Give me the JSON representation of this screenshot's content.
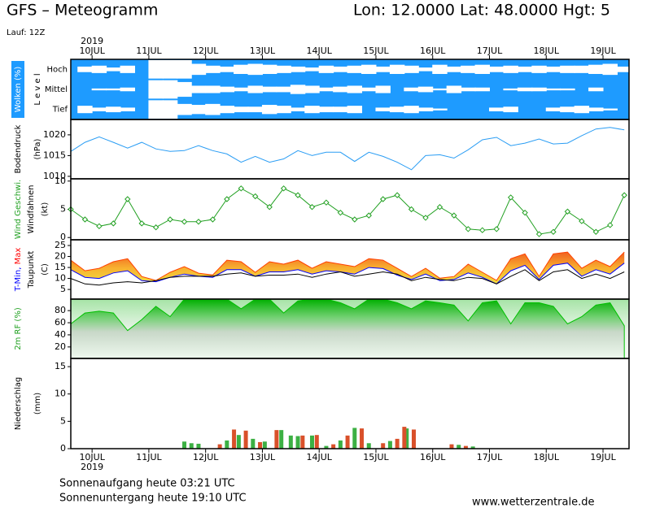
{
  "header": {
    "title": "GFS – Meteogramm",
    "location": "Lon: 12.0000 Lat: 48.0000 Hgt: 5",
    "run": "Lauf: 12Z"
  },
  "time_axis": {
    "year": "2019",
    "xlim": [
      -9,
      227
    ],
    "xticks": [
      {
        "value": 0,
        "label": "10JUL"
      },
      {
        "value": 24,
        "label": "11JUL"
      },
      {
        "value": 48,
        "label": "12JUL"
      },
      {
        "value": 72,
        "label": "13JUL"
      },
      {
        "value": 96,
        "label": "14JUL"
      },
      {
        "value": 120,
        "label": "15JUL"
      },
      {
        "value": 144,
        "label": "16JUL"
      },
      {
        "value": 168,
        "label": "17JUL"
      },
      {
        "value": 192,
        "label": "18JUL"
      },
      {
        "value": 216,
        "label": "19JUL"
      }
    ]
  },
  "chart_data": [
    {
      "type": "cloud",
      "background": "#1e9bff",
      "ylabel": [
        [
          {
            "text": "Wolken (%)",
            "color": "#ffffff",
            "bg": "#1e9bff"
          }
        ],
        [
          {
            "text": "L e v e l"
          }
        ]
      ],
      "x": [
        -9,
        -3,
        3,
        9,
        15,
        21,
        27,
        33,
        39,
        45,
        51,
        57,
        63,
        69,
        75,
        81,
        87,
        93,
        99,
        105,
        111,
        117,
        123,
        129,
        135,
        141,
        147,
        153,
        159,
        165,
        171,
        177,
        183,
        189,
        195,
        201,
        207,
        213,
        219,
        225
      ],
      "series": [
        {
          "name": "Hoch",
          "color": "#ffffff",
          "values": [
            0,
            30,
            40,
            20,
            40,
            0,
            100,
            100,
            100,
            60,
            40,
            30,
            50,
            60,
            50,
            40,
            30,
            20,
            40,
            30,
            40,
            50,
            30,
            50,
            40,
            20,
            50,
            30,
            40,
            50,
            30,
            40,
            30,
            40,
            30,
            40,
            40,
            50,
            60,
            30
          ]
        },
        {
          "name": "Mittel",
          "color": "#ffffff",
          "values": [
            0,
            0,
            10,
            10,
            20,
            0,
            100,
            100,
            80,
            40,
            40,
            30,
            20,
            40,
            30,
            30,
            50,
            40,
            20,
            30,
            40,
            20,
            40,
            0,
            20,
            30,
            10,
            40,
            20,
            20,
            0,
            10,
            20,
            20,
            10,
            10,
            0,
            20,
            0,
            0
          ]
        },
        {
          "name": "Tief",
          "color": "#ffffff",
          "values": [
            0,
            40,
            20,
            30,
            20,
            0,
            100,
            100,
            60,
            50,
            60,
            40,
            30,
            30,
            50,
            40,
            20,
            40,
            30,
            30,
            40,
            0,
            20,
            30,
            40,
            20,
            10,
            0,
            0,
            0,
            20,
            30,
            0,
            0,
            20,
            30,
            40,
            20,
            10,
            0
          ]
        }
      ]
    },
    {
      "type": "line",
      "ylabel": [
        [
          {
            "text": "Bodendruck"
          }
        ],
        [
          {
            "text": "(hPa)"
          }
        ]
      ],
      "ylim": [
        1009.4,
        1023.7
      ],
      "yticks": [
        1010,
        1015,
        1020
      ],
      "x": [
        -9,
        -3,
        3,
        9,
        15,
        21,
        27,
        33,
        39,
        45,
        51,
        57,
        63,
        69,
        75,
        81,
        87,
        93,
        99,
        105,
        111,
        117,
        123,
        129,
        135,
        141,
        147,
        153,
        159,
        165,
        171,
        177,
        183,
        189,
        195,
        201,
        207,
        213,
        219,
        225
      ],
      "series": [
        {
          "color": "#2a9df4",
          "values": [
            1016.0,
            1018.2,
            1019.5,
            1018.2,
            1016.8,
            1018.2,
            1016.6,
            1016.0,
            1016.2,
            1017.4,
            1016.2,
            1015.4,
            1013.4,
            1014.8,
            1013.4,
            1014.2,
            1016.2,
            1015.0,
            1015.8,
            1015.8,
            1013.6,
            1015.8,
            1014.8,
            1013.4,
            1011.6,
            1015.0,
            1015.2,
            1014.4,
            1016.4,
            1018.8,
            1019.4,
            1017.4,
            1018.0,
            1019.0,
            1017.8,
            1018.0,
            1019.8,
            1021.4,
            1021.8,
            1021.2
          ]
        }
      ]
    },
    {
      "type": "line",
      "marker": "diamond",
      "ylabel": [
        [
          {
            "text": "Wind Geschwi.",
            "color": "#20a020"
          }
        ],
        [
          {
            "text": "Windfahnen"
          }
        ],
        [
          {
            "text": "(kt)"
          }
        ]
      ],
      "ylim": [
        -0.4,
        10.4
      ],
      "yticks": [
        0,
        5,
        10
      ],
      "x": [
        -9,
        -3,
        3,
        9,
        15,
        21,
        27,
        33,
        39,
        45,
        51,
        57,
        63,
        69,
        75,
        81,
        87,
        93,
        99,
        105,
        111,
        117,
        123,
        129,
        135,
        141,
        147,
        153,
        159,
        165,
        171,
        177,
        183,
        189,
        195,
        201,
        207,
        213,
        219,
        225
      ],
      "series": [
        {
          "color": "#22a022",
          "values": [
            5,
            3.2,
            2,
            2.5,
            6.8,
            2.5,
            1.8,
            3.2,
            2.8,
            2.8,
            3.2,
            6.8,
            8.7,
            7.3,
            5.4,
            8.7,
            7.5,
            5.4,
            6.2,
            4.4,
            3.2,
            3.9,
            6.8,
            7.5,
            5,
            3.5,
            5.4,
            3.9,
            1.5,
            1.3,
            1.5,
            7.1,
            4.4,
            0.6,
            1,
            4.6,
            2.9,
            1,
            2.2,
            7.5
          ]
        }
      ]
    },
    {
      "type": "band",
      "ylabel": [
        [
          {
            "text": "T-Min,",
            "color": "#0000ff"
          },
          {
            "text": " Max",
            "color": "#ff0000"
          }
        ],
        [
          {
            "text": "Taupunkt"
          }
        ],
        [
          {
            "text": "(C)"
          }
        ]
      ],
      "ylim": [
        0.6,
        27.6
      ],
      "yticks": [
        5,
        10,
        15,
        20,
        25
      ],
      "x": [
        -9,
        -3,
        3,
        9,
        15,
        21,
        27,
        33,
        39,
        45,
        51,
        57,
        63,
        69,
        75,
        81,
        87,
        93,
        99,
        105,
        111,
        117,
        123,
        129,
        135,
        141,
        147,
        153,
        159,
        165,
        171,
        177,
        183,
        189,
        195,
        201,
        207,
        213,
        219,
        225
      ],
      "series": [
        {
          "color": "#0000ff",
          "values": [
            14,
            10.5,
            10,
            12.5,
            13.5,
            9,
            8.5,
            10.5,
            12,
            11,
            10.5,
            14,
            14,
            11,
            13,
            13,
            14,
            12,
            13.5,
            13,
            12,
            15,
            14.5,
            11.5,
            9.5,
            12,
            9,
            9.5,
            12.5,
            10.5,
            7.5,
            13.5,
            16,
            9.5,
            16,
            17,
            11,
            14,
            12,
            17
          ]
        },
        {
          "color": "#ff4000",
          "values": [
            18.3,
            13.5,
            14.6,
            17.6,
            19,
            10.9,
            9.1,
            12.8,
            15.4,
            12.4,
            11.6,
            18.3,
            17.6,
            12.8,
            17.6,
            16.5,
            18.3,
            14.6,
            17.6,
            16.5,
            15.4,
            19,
            18.3,
            14.6,
            10.9,
            14.6,
            10.1,
            10.9,
            16.5,
            12.8,
            9.1,
            19,
            21.2,
            10.9,
            21.2,
            22,
            14.6,
            18.3,
            15.4,
            22
          ]
        },
        {
          "color": "#000000",
          "values": [
            10,
            7.5,
            7,
            8,
            8.5,
            8,
            9,
            10.5,
            11,
            11,
            11,
            12,
            12.5,
            11,
            11.5,
            11.5,
            12,
            10.5,
            12,
            13,
            11,
            12,
            13,
            12,
            9,
            10.5,
            9.5,
            9,
            10.5,
            10,
            7.5,
            11,
            14,
            9,
            13,
            14,
            10,
            12,
            10,
            13
          ]
        }
      ]
    },
    {
      "type": "area",
      "ylabel": [
        [
          {
            "text": "2m RF (%)",
            "color": "#20a020"
          }
        ]
      ],
      "ylim": [
        1,
        99
      ],
      "yticks": [
        20,
        40,
        60,
        80
      ],
      "x": [
        -9,
        -3,
        3,
        9,
        15,
        21,
        27,
        33,
        39,
        45,
        51,
        57,
        63,
        69,
        75,
        81,
        87,
        93,
        99,
        105,
        111,
        117,
        123,
        129,
        135,
        141,
        147,
        153,
        159,
        165,
        171,
        177,
        183,
        189,
        195,
        201,
        207,
        213,
        219,
        225
      ],
      "series": [
        {
          "color": "#00c000",
          "values": [
            58,
            76,
            79,
            76,
            47,
            65,
            87,
            70,
            99,
            99,
            99,
            99,
            83,
            99,
            99,
            76,
            96,
            99,
            99,
            93,
            83,
            99,
            99,
            93,
            83,
            96,
            93,
            89,
            63,
            93,
            96,
            58,
            93,
            93,
            87,
            58,
            70,
            89,
            93,
            55
          ]
        }
      ]
    },
    {
      "type": "bar",
      "ylabel": [
        [
          {
            "text": "Niederschlag"
          }
        ],
        [
          {
            "text": "(mm)"
          }
        ]
      ],
      "ylim": [
        0,
        16.5
      ],
      "yticks": [
        0,
        5,
        10,
        15
      ],
      "series": [
        {
          "color": "#3cb043",
          "x": [
            39,
            42,
            45,
            57,
            62,
            68,
            73,
            80,
            84,
            87,
            93,
            99,
            105,
            111,
            117,
            126,
            133,
            155,
            161
          ],
          "values": [
            1.3,
            1.0,
            0.9,
            1.5,
            2.5,
            1.8,
            1.3,
            3.4,
            2.4,
            2.3,
            2.4,
            0.5,
            1.5,
            3.8,
            1.0,
            1.4,
            3.7,
            0.7,
            0.4
          ]
        },
        {
          "color": "#d9502a",
          "x": [
            54,
            60,
            65,
            71,
            78,
            89,
            95,
            102,
            108,
            114,
            123,
            129,
            132,
            136,
            152,
            158
          ],
          "values": [
            0.8,
            3.5,
            3.3,
            1.2,
            3.4,
            2.4,
            2.5,
            0.8,
            2.4,
            3.7,
            1.0,
            1.8,
            4.0,
            3.5,
            0.8,
            0.5
          ]
        }
      ]
    }
  ],
  "footer": {
    "sunrise": "Sonnenaufgang heute 03:21 UTC",
    "sunset": "Sonnenuntergang heute 19:10 UTC",
    "source": "www.wetterzentrale.de"
  }
}
